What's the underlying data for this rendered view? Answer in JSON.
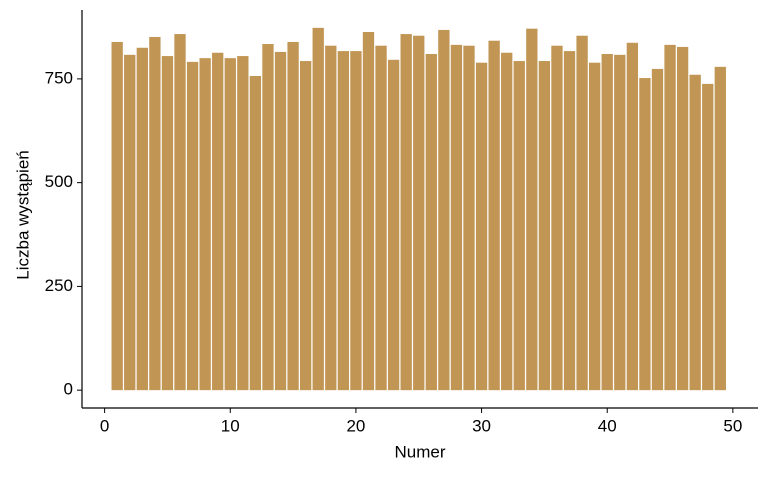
{
  "chart_data": {
    "type": "bar",
    "x_label": "Numer",
    "y_label": "Liczba wystąpień",
    "x": [
      1,
      2,
      3,
      4,
      5,
      6,
      7,
      8,
      9,
      10,
      11,
      12,
      13,
      14,
      15,
      16,
      17,
      18,
      19,
      20,
      21,
      22,
      23,
      24,
      25,
      26,
      27,
      28,
      29,
      30,
      31,
      32,
      33,
      34,
      35,
      36,
      37,
      38,
      39,
      40,
      41,
      42,
      43,
      44,
      45,
      46,
      47,
      48,
      49
    ],
    "values": [
      839,
      808,
      825,
      851,
      805,
      858,
      791,
      800,
      813,
      800,
      805,
      757,
      834,
      815,
      839,
      793,
      873,
      830,
      817,
      817,
      863,
      830,
      796,
      858,
      854,
      810,
      868,
      832,
      830,
      789,
      842,
      813,
      793,
      871,
      793,
      830,
      817,
      854,
      789,
      810,
      808,
      837,
      752,
      774,
      832,
      827,
      760,
      738,
      779
    ],
    "color": "#c19553",
    "xlim": [
      -1.8,
      52
    ],
    "xticks": [
      0,
      10,
      20,
      30,
      40,
      50
    ],
    "ylim": [
      -43,
      916
    ],
    "yticks": [
      0,
      250,
      500,
      750
    ],
    "grid": false
  }
}
